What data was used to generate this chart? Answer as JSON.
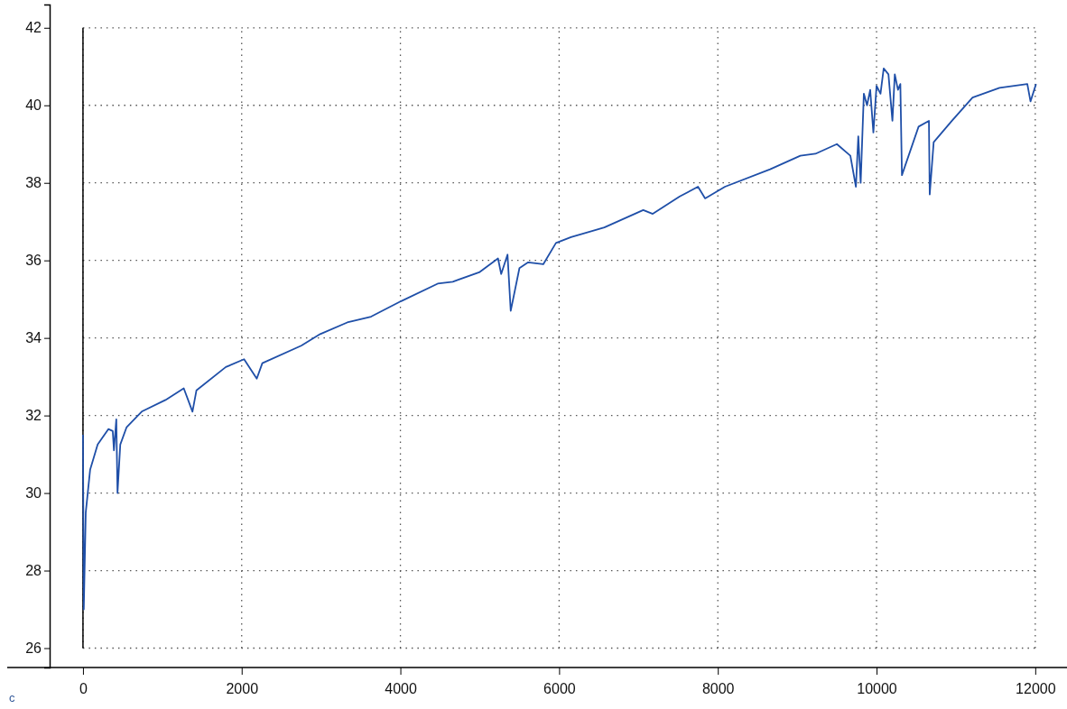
{
  "chart_data": {
    "type": "line",
    "x": [
      0,
      10,
      35,
      90,
      185,
      320,
      375,
      390,
      420,
      435,
      470,
      550,
      740,
      1040,
      1270,
      1380,
      1430,
      1800,
      2030,
      2190,
      2260,
      2750,
      2990,
      3330,
      3630,
      4010,
      4470,
      4660,
      5000,
      5230,
      5270,
      5350,
      5390,
      5500,
      5610,
      5800,
      5960,
      6150,
      6570,
      7060,
      7180,
      7520,
      7750,
      7840,
      8090,
      8660,
      9040,
      9230,
      9500,
      9670,
      9740,
      9770,
      9800,
      9840,
      9880,
      9920,
      9960,
      10000,
      10050,
      10090,
      10150,
      10200,
      10230,
      10270,
      10300,
      10320,
      10530,
      10660,
      10670,
      10720,
      10950,
      11210,
      11550,
      11900,
      11940,
      12010
    ],
    "series": [
      {
        "color": "#1f4fa8",
        "values": [
          31.5,
          27.0,
          29.5,
          30.6,
          31.25,
          31.65,
          31.6,
          31.1,
          31.9,
          30.0,
          31.25,
          31.7,
          32.1,
          32.4,
          32.7,
          32.1,
          32.65,
          33.25,
          33.45,
          32.95,
          33.35,
          33.8,
          34.1,
          34.4,
          34.55,
          34.95,
          35.4,
          35.45,
          35.7,
          36.05,
          35.65,
          36.15,
          34.7,
          35.8,
          35.95,
          35.9,
          36.45,
          36.6,
          36.85,
          37.3,
          37.2,
          37.65,
          37.9,
          37.6,
          37.9,
          38.35,
          38.7,
          38.75,
          39.0,
          38.7,
          37.9,
          39.2,
          38.0,
          40.3,
          40.0,
          40.4,
          39.3,
          40.5,
          40.3,
          40.95,
          40.8,
          39.6,
          40.8,
          40.4,
          40.55,
          38.2,
          39.45,
          39.6,
          37.7,
          39.05,
          39.6,
          40.2,
          40.45,
          40.55,
          40.1,
          40.55
        ]
      }
    ],
    "xlim": [
      -420,
      12400
    ],
    "ylim": [
      25.5,
      42.6
    ],
    "xticks": [
      0,
      2000,
      4000,
      6000,
      8000,
      10000,
      12000
    ],
    "yticks": [
      26,
      28,
      30,
      32,
      34,
      36,
      38,
      40,
      42
    ],
    "grid": true,
    "line_style": "solid",
    "marker": "none",
    "annotations": [
      "c"
    ]
  }
}
